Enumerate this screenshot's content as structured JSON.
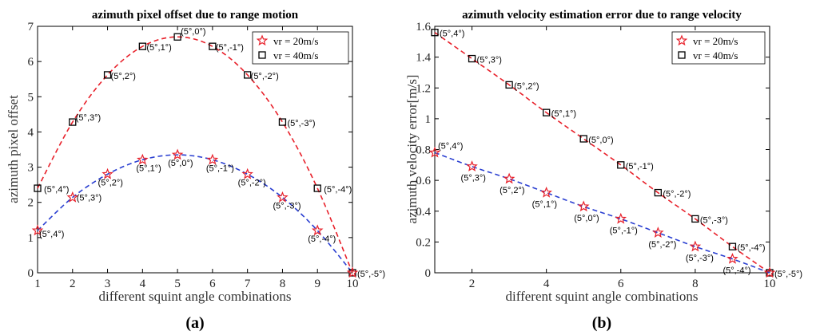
{
  "chart_data": [
    {
      "type": "line",
      "title": "azimuth pixel offset due to range motion",
      "xlabel": "different squint angle combinations",
      "ylabel": "azimuth pixel offset",
      "xlim": [
        1,
        10
      ],
      "ylim": [
        0,
        7
      ],
      "xticks": [
        "1",
        "2",
        "3",
        "4",
        "5",
        "6",
        "7",
        "8",
        "9",
        "10"
      ],
      "yticks": [
        "0",
        "1",
        "2",
        "3",
        "4",
        "5",
        "6",
        "7"
      ],
      "caption": "(a)",
      "legend_position": "top-right",
      "legend": [
        "vr = 20m/s",
        "vr = 40m/s"
      ],
      "x": [
        1,
        2,
        3,
        4,
        5,
        6,
        7,
        8,
        9,
        10
      ],
      "series": [
        {
          "name": "vr = 20m/s",
          "marker": "star",
          "color": "#e8202a",
          "line_color": "#2a3fd1",
          "values": [
            1.2,
            2.14,
            2.8,
            3.21,
            3.35,
            3.21,
            2.8,
            2.14,
            1.2,
            0
          ]
        },
        {
          "name": "vr = 40m/s",
          "marker": "square",
          "color": "#000000",
          "line_color": "#e8202a",
          "values": [
            2.4,
            4.28,
            5.62,
            6.43,
            6.7,
            6.43,
            5.62,
            4.28,
            2.4,
            0
          ]
        }
      ],
      "point_labels_low": [
        "(5°,4°)",
        "(5°,3°)",
        "(5°,2°)",
        "(5°,1°)",
        "(5°,0°)",
        "(5°,-1°)",
        "(5°,-2°)",
        "(5°,-3°)",
        "(5°,-4°)",
        "(5°,-5°)"
      ],
      "point_labels_high": [
        "(5°,4°)",
        "(5°,3°)",
        "(5°,2°)",
        "(5°,1°)",
        "(5°,0°)",
        "(5°,-1°)",
        "(5°,-2°)",
        "(5°,-3°)",
        "(5°,-4°)",
        "(5°,-5°)"
      ]
    },
    {
      "type": "line",
      "title": "azimuth velocity estimation error due to range velocity",
      "xlabel": "different squint angle combinations",
      "ylabel": "azimuth velocity error[m/s]",
      "xlim": [
        1,
        10
      ],
      "ylim": [
        0,
        1.6
      ],
      "xticks": [
        "2",
        "4",
        "6",
        "8",
        "10"
      ],
      "yticks": [
        "0",
        "0.2",
        "0.4",
        "0.6",
        "0.8",
        "1",
        "1.2",
        "1.4",
        "1.6"
      ],
      "caption": "(b)",
      "legend_position": "top-right",
      "legend": [
        "vr = 20m/s",
        "vr = 40m/s"
      ],
      "x": [
        1,
        2,
        3,
        4,
        5,
        6,
        7,
        8,
        9,
        10
      ],
      "series": [
        {
          "name": "vr = 20m/s",
          "marker": "star",
          "color": "#e8202a",
          "line_color": "#2a3fd1",
          "values": [
            0.78,
            0.69,
            0.61,
            0.52,
            0.43,
            0.35,
            0.26,
            0.17,
            0.09,
            0
          ]
        },
        {
          "name": "vr = 40m/s",
          "marker": "square",
          "color": "#000000",
          "line_color": "#e8202a",
          "values": [
            1.56,
            1.39,
            1.22,
            1.04,
            0.87,
            0.7,
            0.52,
            0.35,
            0.17,
            0
          ]
        }
      ],
      "point_labels_low": [
        "(5°,4°)",
        "(5°,3°)",
        "(5°,2°)",
        "(5°,1°)",
        "(5°,0°)",
        "(5°,-1°)",
        "(5°,-2°)",
        "(5°,-3°)",
        "(5°,-4°)",
        "(5°,-5°)"
      ],
      "point_labels_high": [
        "(5°,4°)",
        "(5°,3°)",
        "(5°,2°)",
        "(5°,1°)",
        "(5°,0°)",
        "(5°,-1°)",
        "(5°,-2°)",
        "(5°,-3°)",
        "(5°,-4°)",
        "(5°,-5°)"
      ]
    }
  ]
}
